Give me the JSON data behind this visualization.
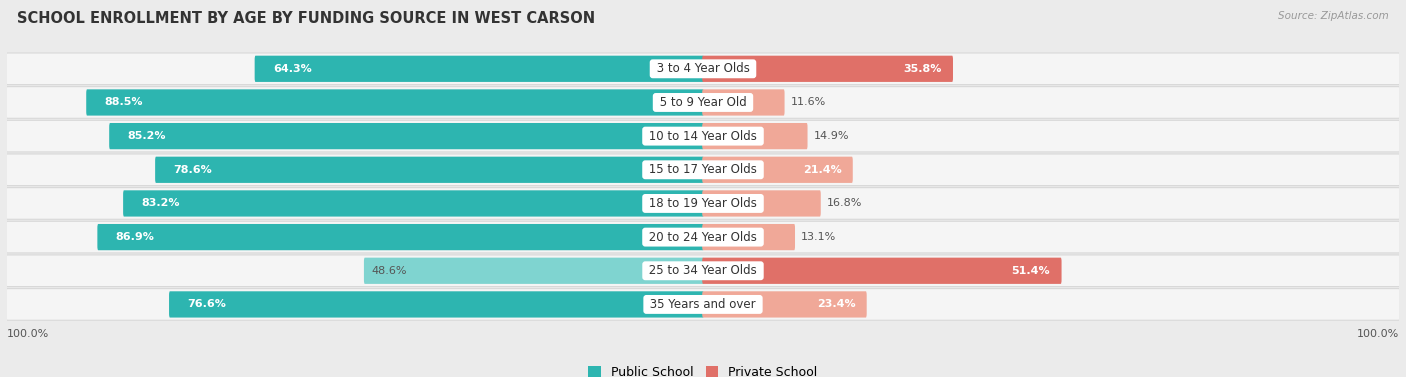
{
  "title": "SCHOOL ENROLLMENT BY AGE BY FUNDING SOURCE IN WEST CARSON",
  "source": "Source: ZipAtlas.com",
  "categories": [
    "3 to 4 Year Olds",
    "5 to 9 Year Old",
    "10 to 14 Year Olds",
    "15 to 17 Year Olds",
    "18 to 19 Year Olds",
    "20 to 24 Year Olds",
    "25 to 34 Year Olds",
    "35 Years and over"
  ],
  "public_values": [
    64.3,
    88.5,
    85.2,
    78.6,
    83.2,
    86.9,
    48.6,
    76.6
  ],
  "private_values": [
    35.8,
    11.6,
    14.9,
    21.4,
    16.8,
    13.1,
    51.4,
    23.4
  ],
  "public_color_dark": "#2db5b0",
  "public_color_light": "#7fd4d0",
  "private_color_dark": "#e07068",
  "private_color_light": "#f0a898",
  "bg_color": "#ebebeb",
  "row_bg_color": "#f5f5f5",
  "row_border_color": "#d8d8d8",
  "title_fontsize": 10.5,
  "source_fontsize": 7.5,
  "label_fontsize": 8.5,
  "value_fontsize": 8,
  "legend_fontsize": 9,
  "axis_label_fontsize": 8,
  "public_light_rows": [
    6
  ],
  "private_light_rows": [
    1,
    2,
    3,
    4,
    5,
    7
  ]
}
